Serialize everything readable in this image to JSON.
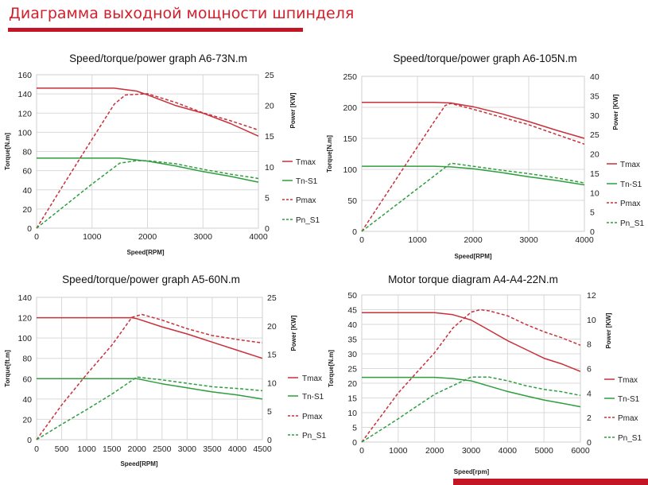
{
  "header": {
    "title": "Диаграмма выходной мощности шпинделя"
  },
  "chart_data": [
    {
      "type": "line",
      "title": "Speed/torque/power graph A6-73N.m",
      "xlabel": "Speed[RPM]",
      "ylabel": "Torque[N.m]",
      "y2label": "Power [KW]",
      "xlim": [
        0,
        4000
      ],
      "ylim": [
        0,
        160
      ],
      "y2lim": [
        0,
        25
      ],
      "xticks": [
        0,
        1000,
        2000,
        3000,
        4000
      ],
      "yticks": [
        0,
        20,
        40,
        60,
        80,
        100,
        120,
        140,
        160
      ],
      "y2ticks": [
        0,
        5,
        10,
        15,
        20,
        25
      ],
      "grid": true,
      "legend": "right",
      "series": [
        {
          "name": "Tmax",
          "axis": "left",
          "style": "solid",
          "color": "#c9303a",
          "points": [
            [
              0,
              146
            ],
            [
              1400,
              146
            ],
            [
              1800,
              143
            ],
            [
              2000,
              139
            ],
            [
              2500,
              128
            ],
            [
              3000,
              120
            ],
            [
              3500,
              109
            ],
            [
              4000,
              96
            ]
          ]
        },
        {
          "name": "Tn-S1",
          "axis": "left",
          "style": "solid",
          "color": "#2e9e3e",
          "points": [
            [
              0,
              73
            ],
            [
              1500,
              73
            ],
            [
              2000,
              70
            ],
            [
              2500,
              65
            ],
            [
              3000,
              59
            ],
            [
              3500,
              54
            ],
            [
              4000,
              48
            ]
          ]
        },
        {
          "name": "Pmax",
          "axis": "right",
          "style": "dashed",
          "color": "#c9303a",
          "points": [
            [
              0,
              0
            ],
            [
              500,
              7.3
            ],
            [
              1000,
              14.5
            ],
            [
              1400,
              20.2
            ],
            [
              1600,
              21.7
            ],
            [
              2000,
              21.9
            ],
            [
              2500,
              20.5
            ],
            [
              3000,
              18.8
            ],
            [
              3500,
              17.5
            ],
            [
              4000,
              16.0
            ]
          ]
        },
        {
          "name": "Pn_S1",
          "axis": "right",
          "style": "dashed",
          "color": "#2e9e3e",
          "points": [
            [
              0,
              0
            ],
            [
              500,
              3.6
            ],
            [
              1000,
              7.2
            ],
            [
              1500,
              10.6
            ],
            [
              1800,
              11.0
            ],
            [
              2000,
              11.0
            ],
            [
              2500,
              10.5
            ],
            [
              3000,
              9.6
            ],
            [
              3500,
              8.8
            ],
            [
              4000,
              8.1
            ]
          ]
        }
      ]
    },
    {
      "type": "line",
      "title": "Speed/torque/power graph A6-105N.m",
      "xlabel": "Speed[RPM]",
      "ylabel": "Torque[N.m]",
      "y2label": "Power [KW]",
      "xlim": [
        0,
        4000
      ],
      "ylim": [
        0,
        250
      ],
      "y2lim": [
        0,
        40
      ],
      "xticks": [
        0,
        1000,
        2000,
        3000,
        4000
      ],
      "yticks": [
        0,
        50,
        100,
        150,
        200,
        250
      ],
      "y2ticks": [
        0,
        5,
        10,
        15,
        20,
        25,
        30,
        35,
        40
      ],
      "grid": true,
      "legend": "right",
      "series": [
        {
          "name": "Tmax",
          "axis": "left",
          "style": "solid",
          "color": "#c9303a",
          "points": [
            [
              0,
              208
            ],
            [
              1300,
              208
            ],
            [
              1600,
              207
            ],
            [
              2000,
              201
            ],
            [
              2500,
              190
            ],
            [
              3000,
              177
            ],
            [
              3500,
              163
            ],
            [
              4000,
              150
            ]
          ]
        },
        {
          "name": "Tn-S1",
          "axis": "left",
          "style": "solid",
          "color": "#2e9e3e",
          "points": [
            [
              0,
              105
            ],
            [
              1300,
              105
            ],
            [
              1600,
              104
            ],
            [
              2000,
              101
            ],
            [
              2500,
              95
            ],
            [
              3000,
              88
            ],
            [
              3500,
              82
            ],
            [
              4000,
              75
            ]
          ]
        },
        {
          "name": "Pmax",
          "axis": "right",
          "style": "dashed",
          "color": "#c9303a",
          "points": [
            [
              0,
              0
            ],
            [
              500,
              10.9
            ],
            [
              1000,
              21.8
            ],
            [
              1300,
              28.3
            ],
            [
              1500,
              32.5
            ],
            [
              1600,
              33.0
            ],
            [
              2000,
              31.5
            ],
            [
              2500,
              29.5
            ],
            [
              3000,
              27.5
            ],
            [
              3500,
              25.0
            ],
            [
              4000,
              22.5
            ]
          ]
        },
        {
          "name": "Pn_S1",
          "axis": "right",
          "style": "dashed",
          "color": "#2e9e3e",
          "points": [
            [
              0,
              0
            ],
            [
              500,
              5.5
            ],
            [
              1000,
              11.0
            ],
            [
              1300,
              14.3
            ],
            [
              1600,
              17.6
            ],
            [
              2000,
              16.8
            ],
            [
              2500,
              15.8
            ],
            [
              3000,
              14.9
            ],
            [
              3500,
              13.8
            ],
            [
              4000,
              12.5
            ]
          ]
        }
      ]
    },
    {
      "type": "line",
      "title": "Speed/torque/power graph A5-60N.m",
      "xlabel": "Speed[RPM]",
      "ylabel": "Torque[ft.m]",
      "y2label": "Power [KW]",
      "xlim": [
        0,
        4500
      ],
      "ylim": [
        0,
        140
      ],
      "y2lim": [
        0,
        25
      ],
      "xticks": [
        0,
        500,
        1000,
        1500,
        2000,
        2500,
        3000,
        3500,
        4000,
        4500
      ],
      "yticks": [
        0,
        20,
        40,
        60,
        80,
        100,
        120,
        140
      ],
      "y2ticks": [
        0,
        5,
        10,
        15,
        20,
        25
      ],
      "grid": true,
      "legend": "right",
      "series": [
        {
          "name": "Tmax",
          "axis": "left",
          "style": "solid",
          "color": "#c9303a",
          "points": [
            [
              0,
              120
            ],
            [
              1900,
              120
            ],
            [
              2000,
              119
            ],
            [
              2500,
              111
            ],
            [
              3000,
              104
            ],
            [
              3500,
              96
            ],
            [
              4000,
              88
            ],
            [
              4500,
              80
            ]
          ]
        },
        {
          "name": "Tn-S1",
          "axis": "left",
          "style": "solid",
          "color": "#2e9e3e",
          "points": [
            [
              0,
              60
            ],
            [
              2000,
              60
            ],
            [
              2500,
              55
            ],
            [
              3000,
              51
            ],
            [
              3500,
              47
            ],
            [
              4000,
              44
            ],
            [
              4500,
              40
            ]
          ]
        },
        {
          "name": "Pmax",
          "axis": "right",
          "style": "dashed",
          "color": "#c9303a",
          "points": [
            [
              0,
              0
            ],
            [
              500,
              6.1
            ],
            [
              1000,
              11.5
            ],
            [
              1500,
              16.6
            ],
            [
              1900,
              21.5
            ],
            [
              2100,
              22.0
            ],
            [
              2500,
              21.0
            ],
            [
              3000,
              19.5
            ],
            [
              3500,
              18.3
            ],
            [
              4000,
              17.6
            ],
            [
              4500,
              17.0
            ]
          ]
        },
        {
          "name": "Pn_S1",
          "axis": "right",
          "style": "dashed",
          "color": "#2e9e3e",
          "points": [
            [
              0,
              0
            ],
            [
              500,
              2.7
            ],
            [
              1000,
              5.3
            ],
            [
              1500,
              8.0
            ],
            [
              2000,
              11.0
            ],
            [
              2500,
              10.5
            ],
            [
              3000,
              9.9
            ],
            [
              3500,
              9.3
            ],
            [
              4000,
              9.0
            ],
            [
              4500,
              8.6
            ]
          ]
        }
      ]
    },
    {
      "type": "line",
      "title": "Motor torque diagram A4-A4-22N.m",
      "xlabel": "Speed[rpm]",
      "ylabel": "Torque[N.m]",
      "y2label": "Power [KW]",
      "xlim": [
        0,
        6000
      ],
      "ylim": [
        0,
        50
      ],
      "y2lim": [
        0,
        12
      ],
      "xticks": [
        0,
        1000,
        2000,
        3000,
        4000,
        5000,
        6000
      ],
      "yticks": [
        0,
        5,
        10,
        15,
        20,
        25,
        30,
        35,
        40,
        45,
        50
      ],
      "y2ticks": [
        0,
        2,
        4,
        6,
        8,
        10,
        12
      ],
      "grid": true,
      "legend": "right",
      "series": [
        {
          "name": "Tmax",
          "axis": "left",
          "style": "solid",
          "color": "#c9303a",
          "points": [
            [
              0,
              44
            ],
            [
              1000,
              44
            ],
            [
              2000,
              44
            ],
            [
              2500,
              43.3
            ],
            [
              3000,
              41.5
            ],
            [
              3500,
              38.0
            ],
            [
              4000,
              34.5
            ],
            [
              4500,
              31.5
            ],
            [
              5000,
              28.5
            ],
            [
              5500,
              26.5
            ],
            [
              6000,
              24.0
            ]
          ]
        },
        {
          "name": "Tn-S1",
          "axis": "left",
          "style": "solid",
          "color": "#2e9e3e",
          "points": [
            [
              0,
              22
            ],
            [
              2000,
              22
            ],
            [
              2500,
              21.6
            ],
            [
              3000,
              20.8
            ],
            [
              3500,
              19.0
            ],
            [
              4000,
              17.2
            ],
            [
              4500,
              15.7
            ],
            [
              5000,
              14.3
            ],
            [
              5500,
              13.2
            ],
            [
              6000,
              12.0
            ]
          ]
        },
        {
          "name": "Pmax",
          "axis": "right",
          "style": "dashed",
          "color": "#c9303a",
          "points": [
            [
              0,
              0
            ],
            [
              1000,
              4.0
            ],
            [
              2000,
              7.3
            ],
            [
              2500,
              9.3
            ],
            [
              3000,
              10.6
            ],
            [
              3250,
              10.8
            ],
            [
              3500,
              10.7
            ],
            [
              4000,
              10.3
            ],
            [
              4500,
              9.6
            ],
            [
              5000,
              9.0
            ],
            [
              5500,
              8.5
            ],
            [
              6000,
              7.9
            ]
          ]
        },
        {
          "name": "Pn_S1",
          "axis": "right",
          "style": "dashed",
          "color": "#2e9e3e",
          "points": [
            [
              0,
              0
            ],
            [
              1000,
              1.9
            ],
            [
              2000,
              3.9
            ],
            [
              2500,
              4.6
            ],
            [
              3000,
              5.3
            ],
            [
              3500,
              5.3
            ],
            [
              4000,
              5.0
            ],
            [
              4500,
              4.6
            ],
            [
              5000,
              4.3
            ],
            [
              5500,
              4.1
            ],
            [
              6000,
              3.8
            ]
          ]
        }
      ]
    }
  ]
}
